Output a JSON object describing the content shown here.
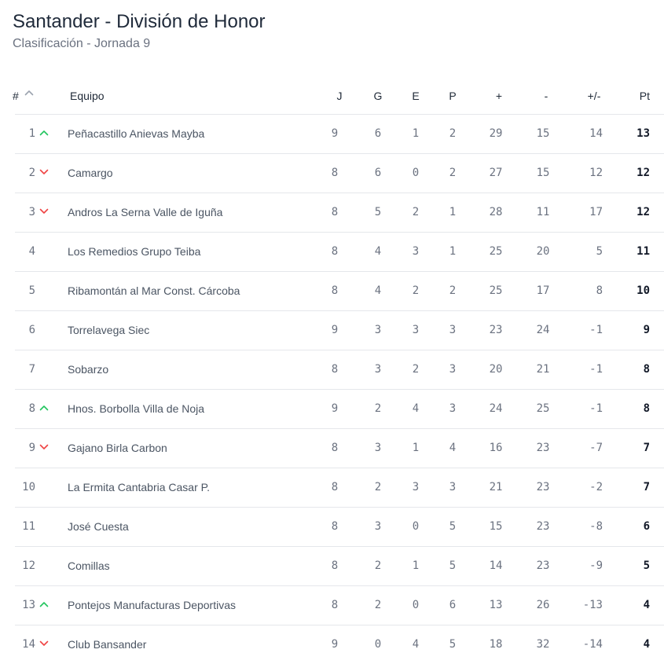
{
  "header": {
    "title": "Santander - División de Honor",
    "subtitle": "Clasificación - Jornada 9"
  },
  "columns": {
    "pos": "#",
    "team": "Equipo",
    "j": "J",
    "g": "G",
    "e": "E",
    "p": "P",
    "plus": "+",
    "minus": "-",
    "diff": "+/-",
    "pt": "Pt"
  },
  "colors": {
    "up": "#22c55e",
    "down": "#ef4444",
    "sort": "#9ca3af"
  },
  "rows": [
    {
      "pos": "1",
      "trend": "up",
      "team": "Peñacastillo Anievas Mayba",
      "j": "9",
      "g": "6",
      "e": "1",
      "p": "2",
      "plus": "29",
      "minus": "15",
      "diff": "14",
      "pt": "13"
    },
    {
      "pos": "2",
      "trend": "down",
      "team": "Camargo",
      "j": "8",
      "g": "6",
      "e": "0",
      "p": "2",
      "plus": "27",
      "minus": "15",
      "diff": "12",
      "pt": "12"
    },
    {
      "pos": "3",
      "trend": "down",
      "team": "Andros La Serna Valle de Iguña",
      "j": "8",
      "g": "5",
      "e": "2",
      "p": "1",
      "plus": "28",
      "minus": "11",
      "diff": "17",
      "pt": "12"
    },
    {
      "pos": "4",
      "trend": "none",
      "team": "Los Remedios Grupo Teiba",
      "j": "8",
      "g": "4",
      "e": "3",
      "p": "1",
      "plus": "25",
      "minus": "20",
      "diff": "5",
      "pt": "11"
    },
    {
      "pos": "5",
      "trend": "none",
      "team": "Ribamontán al Mar Const. Cárcoba",
      "j": "8",
      "g": "4",
      "e": "2",
      "p": "2",
      "plus": "25",
      "minus": "17",
      "diff": "8",
      "pt": "10"
    },
    {
      "pos": "6",
      "trend": "none",
      "team": "Torrelavega Siec",
      "j": "9",
      "g": "3",
      "e": "3",
      "p": "3",
      "plus": "23",
      "minus": "24",
      "diff": "-1",
      "pt": "9"
    },
    {
      "pos": "7",
      "trend": "none",
      "team": "Sobarzo",
      "j": "8",
      "g": "3",
      "e": "2",
      "p": "3",
      "plus": "20",
      "minus": "21",
      "diff": "-1",
      "pt": "8"
    },
    {
      "pos": "8",
      "trend": "up",
      "team": "Hnos. Borbolla Villa de Noja",
      "j": "9",
      "g": "2",
      "e": "4",
      "p": "3",
      "plus": "24",
      "minus": "25",
      "diff": "-1",
      "pt": "8"
    },
    {
      "pos": "9",
      "trend": "down",
      "team": "Gajano Birla Carbon",
      "j": "8",
      "g": "3",
      "e": "1",
      "p": "4",
      "plus": "16",
      "minus": "23",
      "diff": "-7",
      "pt": "7"
    },
    {
      "pos": "10",
      "trend": "none",
      "team": "La Ermita Cantabria Casar P.",
      "j": "8",
      "g": "2",
      "e": "3",
      "p": "3",
      "plus": "21",
      "minus": "23",
      "diff": "-2",
      "pt": "7"
    },
    {
      "pos": "11",
      "trend": "none",
      "team": "José Cuesta",
      "j": "8",
      "g": "3",
      "e": "0",
      "p": "5",
      "plus": "15",
      "minus": "23",
      "diff": "-8",
      "pt": "6"
    },
    {
      "pos": "12",
      "trend": "none",
      "team": "Comillas",
      "j": "8",
      "g": "2",
      "e": "1",
      "p": "5",
      "plus": "14",
      "minus": "23",
      "diff": "-9",
      "pt": "5"
    },
    {
      "pos": "13",
      "trend": "up",
      "team": "Pontejos Manufacturas Deportivas",
      "j": "8",
      "g": "2",
      "e": "0",
      "p": "6",
      "plus": "13",
      "minus": "26",
      "diff": "-13",
      "pt": "4"
    },
    {
      "pos": "14",
      "trend": "down",
      "team": "Club Bansander",
      "j": "9",
      "g": "0",
      "e": "4",
      "p": "5",
      "plus": "18",
      "minus": "32",
      "diff": "-14",
      "pt": "4"
    }
  ]
}
